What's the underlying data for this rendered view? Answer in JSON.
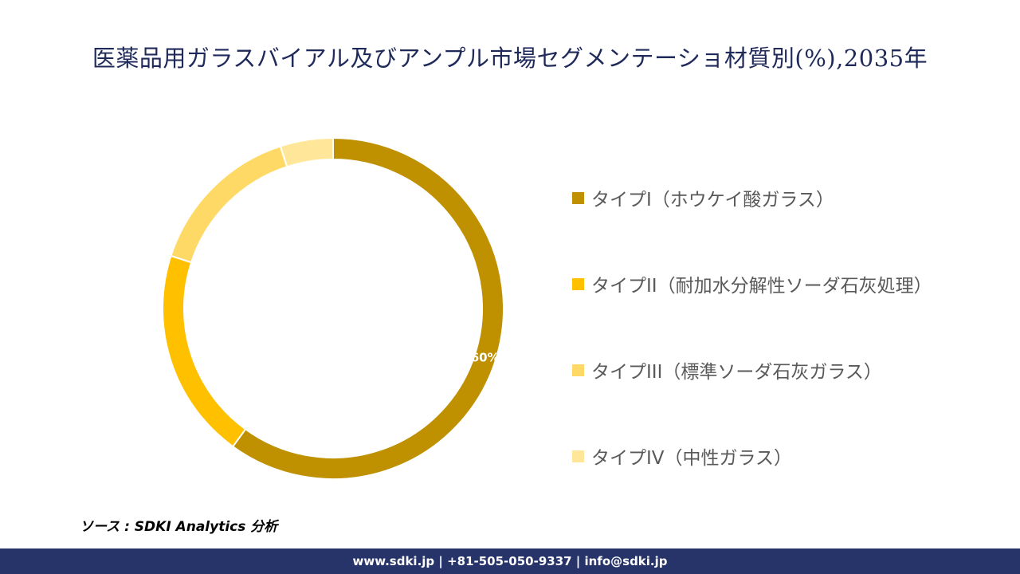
{
  "chart_data": {
    "type": "pie",
    "title": "医薬品用ガラスバイアル及びアンプル市場セグメンテーショ材質別(%),2035年",
    "categories": [
      "タイプI（ホウケイ酸ガラス）",
      "タイプII（耐加水分解性ソーダ石灰処理）",
      "タイプIII（標準ソーダ石灰ガラス）",
      "タイプIV（中性ガラス）"
    ],
    "values": [
      60,
      20,
      15,
      5
    ],
    "colors": [
      "#bf9000",
      "#ffc000",
      "#ffd966",
      "#ffe699"
    ],
    "data_labels": [
      "60%",
      "",
      "",
      ""
    ],
    "legend_position": "right"
  },
  "source": "ソース : SDKI Analytics 分析",
  "footer": "www.sdki.jp | +81-505-050-9337 | info@sdki.jp"
}
